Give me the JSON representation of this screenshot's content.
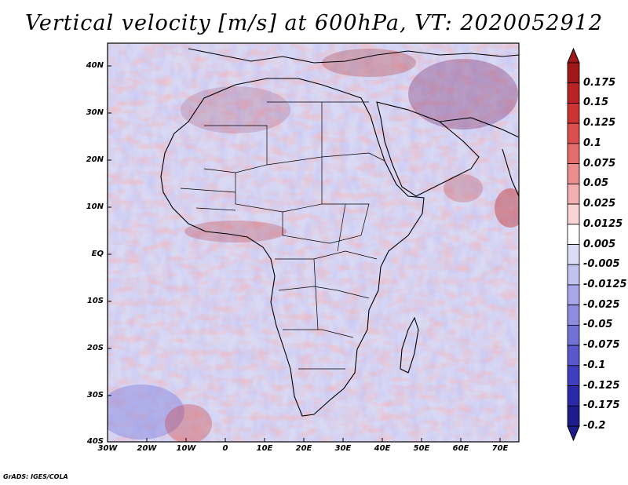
{
  "title": "Vertical velocity [m/s] at 600hPa, VT: 2020052912",
  "latitude_labels": [
    "40N",
    "30N",
    "20N",
    "10N",
    "EQ",
    "10S",
    "20S",
    "30S",
    "40S"
  ],
  "longitude_labels": [
    "30W",
    "20W",
    "10W",
    "0",
    "10E",
    "20E",
    "30E",
    "40E",
    "50E",
    "60E",
    "70E"
  ],
  "colorbar": {
    "labels": [
      "0.175",
      "0.15",
      "0.125",
      "0.1",
      "0.075",
      "0.05",
      "0.025",
      "0.0125",
      "0.005",
      "-0.005",
      "-0.0125",
      "-0.025",
      "-0.05",
      "-0.075",
      "-0.1",
      "-0.125",
      "-0.175",
      "-0.2"
    ],
    "colors": [
      "#a01818",
      "#b82424",
      "#cc3434",
      "#dc4e4e",
      "#e46c6c",
      "#ec8e8e",
      "#f4b0b0",
      "#fad4d4",
      "#ffffff",
      "#dcdcf6",
      "#c2c2f0",
      "#a6a6e8",
      "#8c8ce0",
      "#7272d6",
      "#5858cc",
      "#3e3ebf",
      "#2a2aa8",
      "#1c1c8c"
    ]
  },
  "credit": "GrADS: IGES/COLA"
}
